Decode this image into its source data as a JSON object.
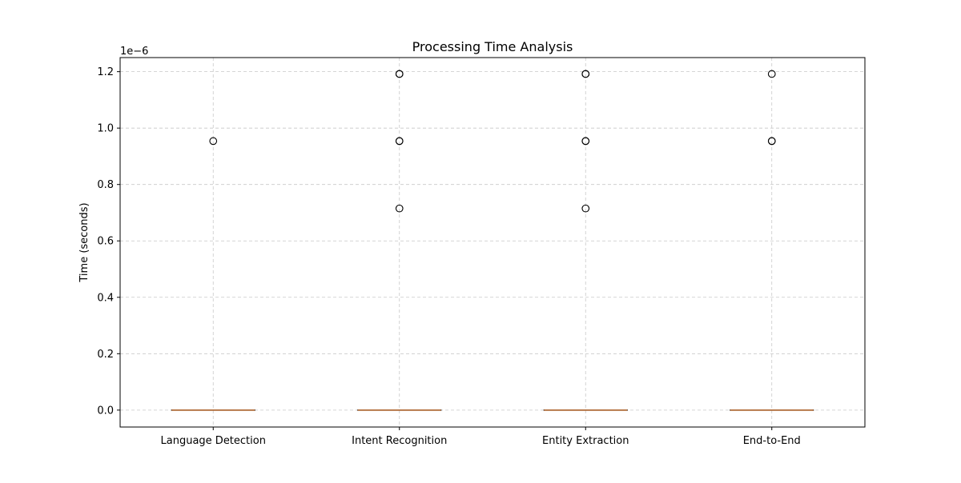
{
  "chart_data": {
    "type": "box",
    "title": "Processing Time Analysis",
    "xlabel": "",
    "ylabel": "Time (seconds)",
    "y_offset_label": "1e−6",
    "y_scale_factor": 1e-06,
    "ylim": [
      -0.06,
      1.25
    ],
    "yticks": [
      0.0,
      0.2,
      0.4,
      0.6,
      0.8,
      1.0,
      1.2
    ],
    "ytick_labels": [
      "0.0",
      "0.2",
      "0.4",
      "0.6",
      "0.8",
      "1.0",
      "1.2"
    ],
    "grid": true,
    "categories": [
      "Language Detection",
      "Intent Recognition",
      "Entity Extraction",
      "End-to-End"
    ],
    "boxes": [
      {
        "name": "Language Detection",
        "q1": 0.0,
        "median": 0.0,
        "q3": 0.0,
        "whisker_low": 0.0,
        "whisker_high": 0.0,
        "fliers": [
          0.954
        ]
      },
      {
        "name": "Intent Recognition",
        "q1": 0.0,
        "median": 0.0,
        "q3": 0.0,
        "whisker_low": 0.0,
        "whisker_high": 0.0,
        "fliers": [
          0.715,
          0.954,
          0.954,
          1.192,
          1.192
        ]
      },
      {
        "name": "Entity Extraction",
        "q1": 0.0,
        "median": 0.0,
        "q3": 0.0,
        "whisker_low": 0.0,
        "whisker_high": 0.0,
        "fliers": [
          0.715,
          0.954,
          0.954,
          1.192,
          1.192
        ]
      },
      {
        "name": "End-to-End",
        "q1": 0.0,
        "median": 0.0,
        "q3": 0.0,
        "whisker_low": 0.0,
        "whisker_high": 0.0,
        "fliers": [
          0.954,
          0.954,
          1.192
        ]
      }
    ],
    "colors": {
      "median": "#c8773b",
      "box": "#000000",
      "flier": "#000000",
      "grid": "#c8c8c8"
    }
  }
}
